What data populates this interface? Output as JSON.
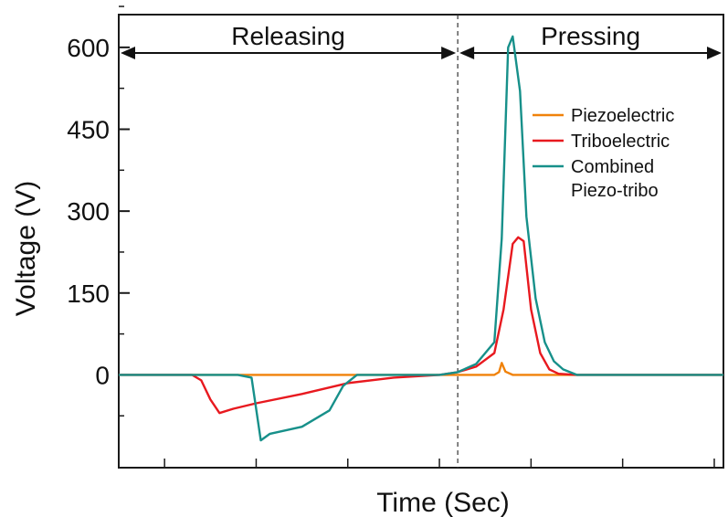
{
  "chart_data": {
    "type": "line",
    "xlabel": "Time (Sec)",
    "ylabel": "Voltage (V)",
    "ylim": [
      -170,
      660
    ],
    "yticks": [
      0,
      150,
      300,
      450,
      600
    ],
    "xlim": [
      0,
      6.6
    ],
    "xticks_unlabeled": [
      0.5,
      1.5,
      2.5,
      3.5,
      4.5,
      5.5,
      6.5
    ],
    "grid": false,
    "legend_position": "right, mid-upper",
    "divider_x": 3.7,
    "regions": [
      {
        "label": "Releasing",
        "x_start": 0.0,
        "x_end": 3.7
      },
      {
        "label": "Pressing",
        "x_start": 3.7,
        "x_end": 6.6
      }
    ],
    "series": [
      {
        "name": "Piezoelectric",
        "color": "#f0820a",
        "x": [
          0.0,
          4.1,
          4.15,
          4.18,
          4.22,
          4.3,
          4.6,
          6.6
        ],
        "y": [
          0,
          0,
          5,
          22,
          6,
          0,
          0,
          0
        ]
      },
      {
        "name": "Triboelectric",
        "color": "#e8191f",
        "x": [
          0.0,
          0.8,
          0.9,
          1.0,
          1.1,
          1.25,
          1.5,
          2.0,
          2.5,
          3.0,
          3.5,
          3.7,
          3.9,
          4.1,
          4.2,
          4.3,
          4.36,
          4.42,
          4.5,
          4.6,
          4.7,
          4.8,
          5.0,
          5.2,
          6.6
        ],
        "y": [
          0,
          0,
          -10,
          -45,
          -70,
          -62,
          -52,
          -35,
          -15,
          -5,
          0,
          5,
          15,
          40,
          120,
          240,
          252,
          245,
          120,
          40,
          10,
          2,
          0,
          0,
          0
        ]
      },
      {
        "name": "Combined Piezo-tribo",
        "color": "#17908a",
        "x": [
          0.0,
          0.5,
          1.0,
          1.3,
          1.45,
          1.55,
          1.65,
          2.0,
          2.3,
          2.45,
          2.6,
          3.0,
          3.5,
          3.7,
          3.9,
          4.1,
          4.18,
          4.25,
          4.3,
          4.38,
          4.45,
          4.55,
          4.65,
          4.75,
          4.85,
          5.0,
          5.5,
          6.0,
          6.6
        ],
        "y": [
          0,
          0,
          0,
          0,
          -5,
          -120,
          -108,
          -95,
          -65,
          -20,
          0,
          0,
          0,
          5,
          20,
          60,
          250,
          600,
          620,
          520,
          290,
          140,
          60,
          25,
          10,
          0,
          0,
          0,
          0
        ]
      }
    ]
  }
}
